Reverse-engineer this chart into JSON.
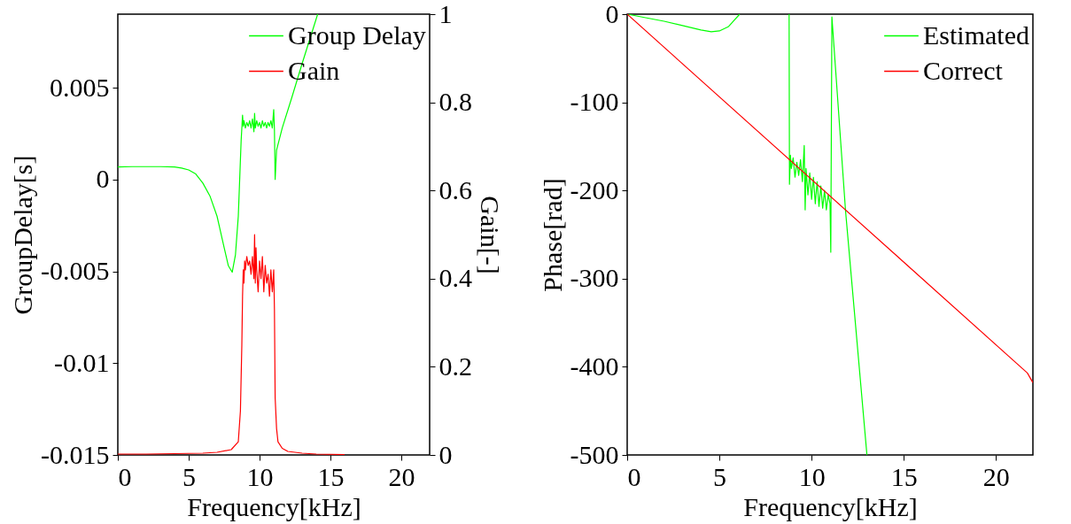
{
  "chart_data": [
    {
      "type": "line",
      "xlabel": "Frequency[kHz]",
      "ylabel": "GroupDelay[s]",
      "y2label": "Gain[-]",
      "xlim": [
        0,
        22
      ],
      "xticks": [
        0,
        5,
        10,
        15,
        20
      ],
      "ylim": [
        -0.015,
        0.009
      ],
      "yticks": [
        -0.015,
        -0.01,
        -0.005,
        0,
        0.005
      ],
      "y2lim": [
        0,
        1
      ],
      "y2ticks": [
        0,
        0.2,
        0.4,
        0.6,
        0.8,
        1
      ],
      "legend": "top right",
      "grid": false,
      "series": [
        {
          "name": "Group Delay",
          "color": "#00ff00",
          "x": [
            0,
            1,
            2,
            3,
            4,
            4.5,
            5,
            5.5,
            6,
            6.5,
            7,
            7.5,
            7.8,
            8.07,
            8.3,
            8.5,
            8.7,
            8.8,
            8.85,
            8.9,
            9.0,
            9.1,
            9.2,
            9.3,
            9.4,
            9.5,
            9.6,
            9.65,
            9.7,
            9.8,
            9.9,
            10.0,
            10.1,
            10.2,
            10.3,
            10.4,
            10.5,
            10.6,
            10.7,
            10.8,
            10.9,
            11.0,
            11.05,
            11.1,
            11.2,
            11.6,
            12.25,
            13,
            14.1
          ],
          "values": [
            0.00068,
            0.0007,
            0.0007,
            0.0007,
            0.00068,
            0.00062,
            0.00052,
            0.0003,
            -0.0002,
            -0.0009,
            -0.002,
            -0.0037,
            -0.0047,
            -0.00505,
            -0.0041,
            -0.002,
            0.0021,
            0.0035,
            0.0029,
            0.0032,
            0.0028,
            0.0031,
            0.0029,
            0.0032,
            0.0028,
            0.0033,
            0.0026,
            0.0036,
            0.0028,
            0.0032,
            0.0029,
            0.0031,
            0.0028,
            0.0032,
            0.0029,
            0.0031,
            0.0028,
            0.0031,
            0.0029,
            0.0032,
            0.0028,
            0.0038,
            0.0027,
            0.0,
            0.0016,
            0.0028,
            0.0044,
            0.0063,
            0.009
          ]
        },
        {
          "name": "Gain",
          "color": "#ff0000",
          "axis": "y2",
          "x": [
            0,
            2,
            4,
            6,
            7,
            8,
            8.5,
            8.65,
            8.75,
            8.8,
            8.85,
            8.9,
            8.95,
            9.0,
            9.1,
            9.2,
            9.3,
            9.4,
            9.5,
            9.6,
            9.65,
            9.7,
            9.75,
            9.8,
            9.9,
            10.0,
            10.1,
            10.2,
            10.3,
            10.4,
            10.5,
            10.6,
            10.7,
            10.8,
            10.9,
            11.0,
            11.05,
            11.1,
            11.2,
            11.3,
            11.6,
            12,
            13,
            14,
            16
          ],
          "values": [
            0.002,
            0.002,
            0.003,
            0.004,
            0.006,
            0.012,
            0.03,
            0.1,
            0.25,
            0.36,
            0.42,
            0.39,
            0.44,
            0.42,
            0.45,
            0.43,
            0.44,
            0.41,
            0.45,
            0.4,
            0.5,
            0.39,
            0.47,
            0.42,
            0.37,
            0.44,
            0.4,
            0.45,
            0.37,
            0.43,
            0.39,
            0.41,
            0.36,
            0.42,
            0.37,
            0.42,
            0.33,
            0.13,
            0.06,
            0.03,
            0.015,
            0.008,
            0.004,
            0.002,
            0.001
          ]
        }
      ]
    },
    {
      "type": "line",
      "xlabel": "Frequency[kHz]",
      "ylabel": "Phase[rad]",
      "xlim": [
        0,
        22
      ],
      "xticks": [
        0,
        5,
        10,
        15,
        20
      ],
      "ylim": [
        -500,
        0
      ],
      "yticks": [
        -500,
        -400,
        -300,
        -200,
        -100,
        0
      ],
      "legend": "top right",
      "grid": false,
      "series": [
        {
          "name": "Estimated",
          "color": "#00ff00",
          "x": [
            0,
            1,
            2,
            3,
            4,
            4.56,
            5,
            5.5,
            6.1,
            7,
            8.78,
            8.8,
            8.85,
            8.9,
            9.0,
            9.1,
            9.2,
            9.3,
            9.4,
            9.5,
            9.6,
            9.65,
            9.7,
            9.8,
            9.9,
            10.0,
            10.1,
            10.2,
            10.3,
            10.4,
            10.5,
            10.6,
            10.7,
            10.8,
            10.9,
            11.0,
            11.04,
            11.1,
            11.84,
            13.0
          ],
          "values": [
            0,
            -4,
            -8,
            -13,
            -18,
            -20,
            -19,
            -14,
            0,
            null,
            0,
            -193,
            -160,
            -175,
            -163,
            -185,
            -168,
            -183,
            -165,
            -190,
            -149,
            -222,
            -175,
            -205,
            -180,
            -210,
            -185,
            -215,
            -190,
            -218,
            -195,
            -220,
            -200,
            -222,
            -205,
            -215,
            -270,
            -3,
            -223,
            -500
          ]
        },
        {
          "name": "Correct",
          "color": "#ff0000",
          "x": [
            0,
            21.7,
            22
          ],
          "values": [
            0,
            -407,
            -418
          ]
        }
      ]
    }
  ]
}
